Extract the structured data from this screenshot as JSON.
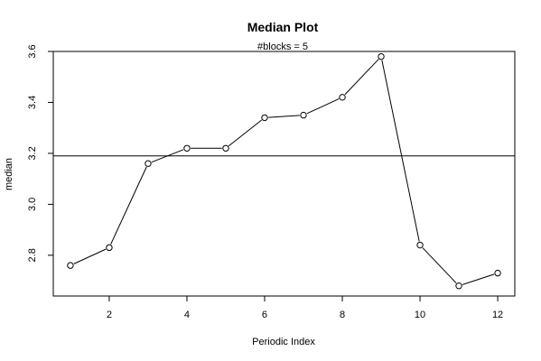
{
  "chart_data": {
    "type": "line",
    "title": "Median Plot",
    "subtitle": "#blocks =  5",
    "xlabel": "Periodic Index",
    "ylabel": "median",
    "x": [
      1,
      2,
      3,
      4,
      5,
      6,
      7,
      8,
      9,
      10,
      11,
      12
    ],
    "series": [
      {
        "values": [
          2.76,
          2.83,
          3.16,
          3.22,
          3.22,
          3.34,
          3.35,
          3.42,
          3.58,
          2.84,
          2.68,
          2.73
        ]
      }
    ],
    "reference_line": {
      "y": 3.19
    },
    "xlim": [
      0.56,
      12.44
    ],
    "ylim": [
      2.64,
      3.6
    ],
    "xticks": [
      2,
      4,
      6,
      8,
      10,
      12
    ],
    "yticks": [
      2.8,
      3.0,
      3.2,
      3.4,
      3.6
    ],
    "xtick_labels": [
      "2",
      "4",
      "6",
      "8",
      "10",
      "12"
    ],
    "ytick_labels": [
      "2.8",
      "3.0",
      "3.2",
      "3.4",
      "3.6"
    ],
    "grid": false,
    "line_color": "#000000",
    "marker": "open-circle"
  }
}
